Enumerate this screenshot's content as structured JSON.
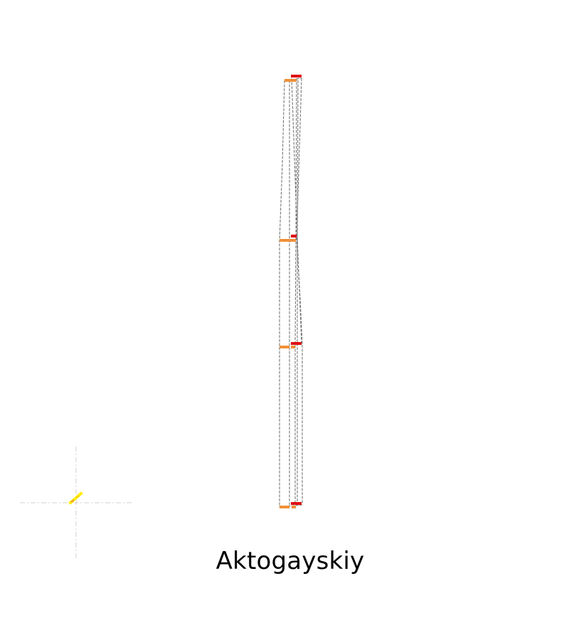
{
  "caption": "Aktogayskiy",
  "colors": {
    "background": "#ffffff",
    "outline": "#777777",
    "crosshair": "#d0d0d0",
    "bar_orange": "#f0913a",
    "bar_red": "#e01010",
    "marker_yellow": "#ffee00"
  },
  "icons": {
    "origin_marker": "crosshair-icon",
    "origin_glyph": "lightning-icon"
  }
}
